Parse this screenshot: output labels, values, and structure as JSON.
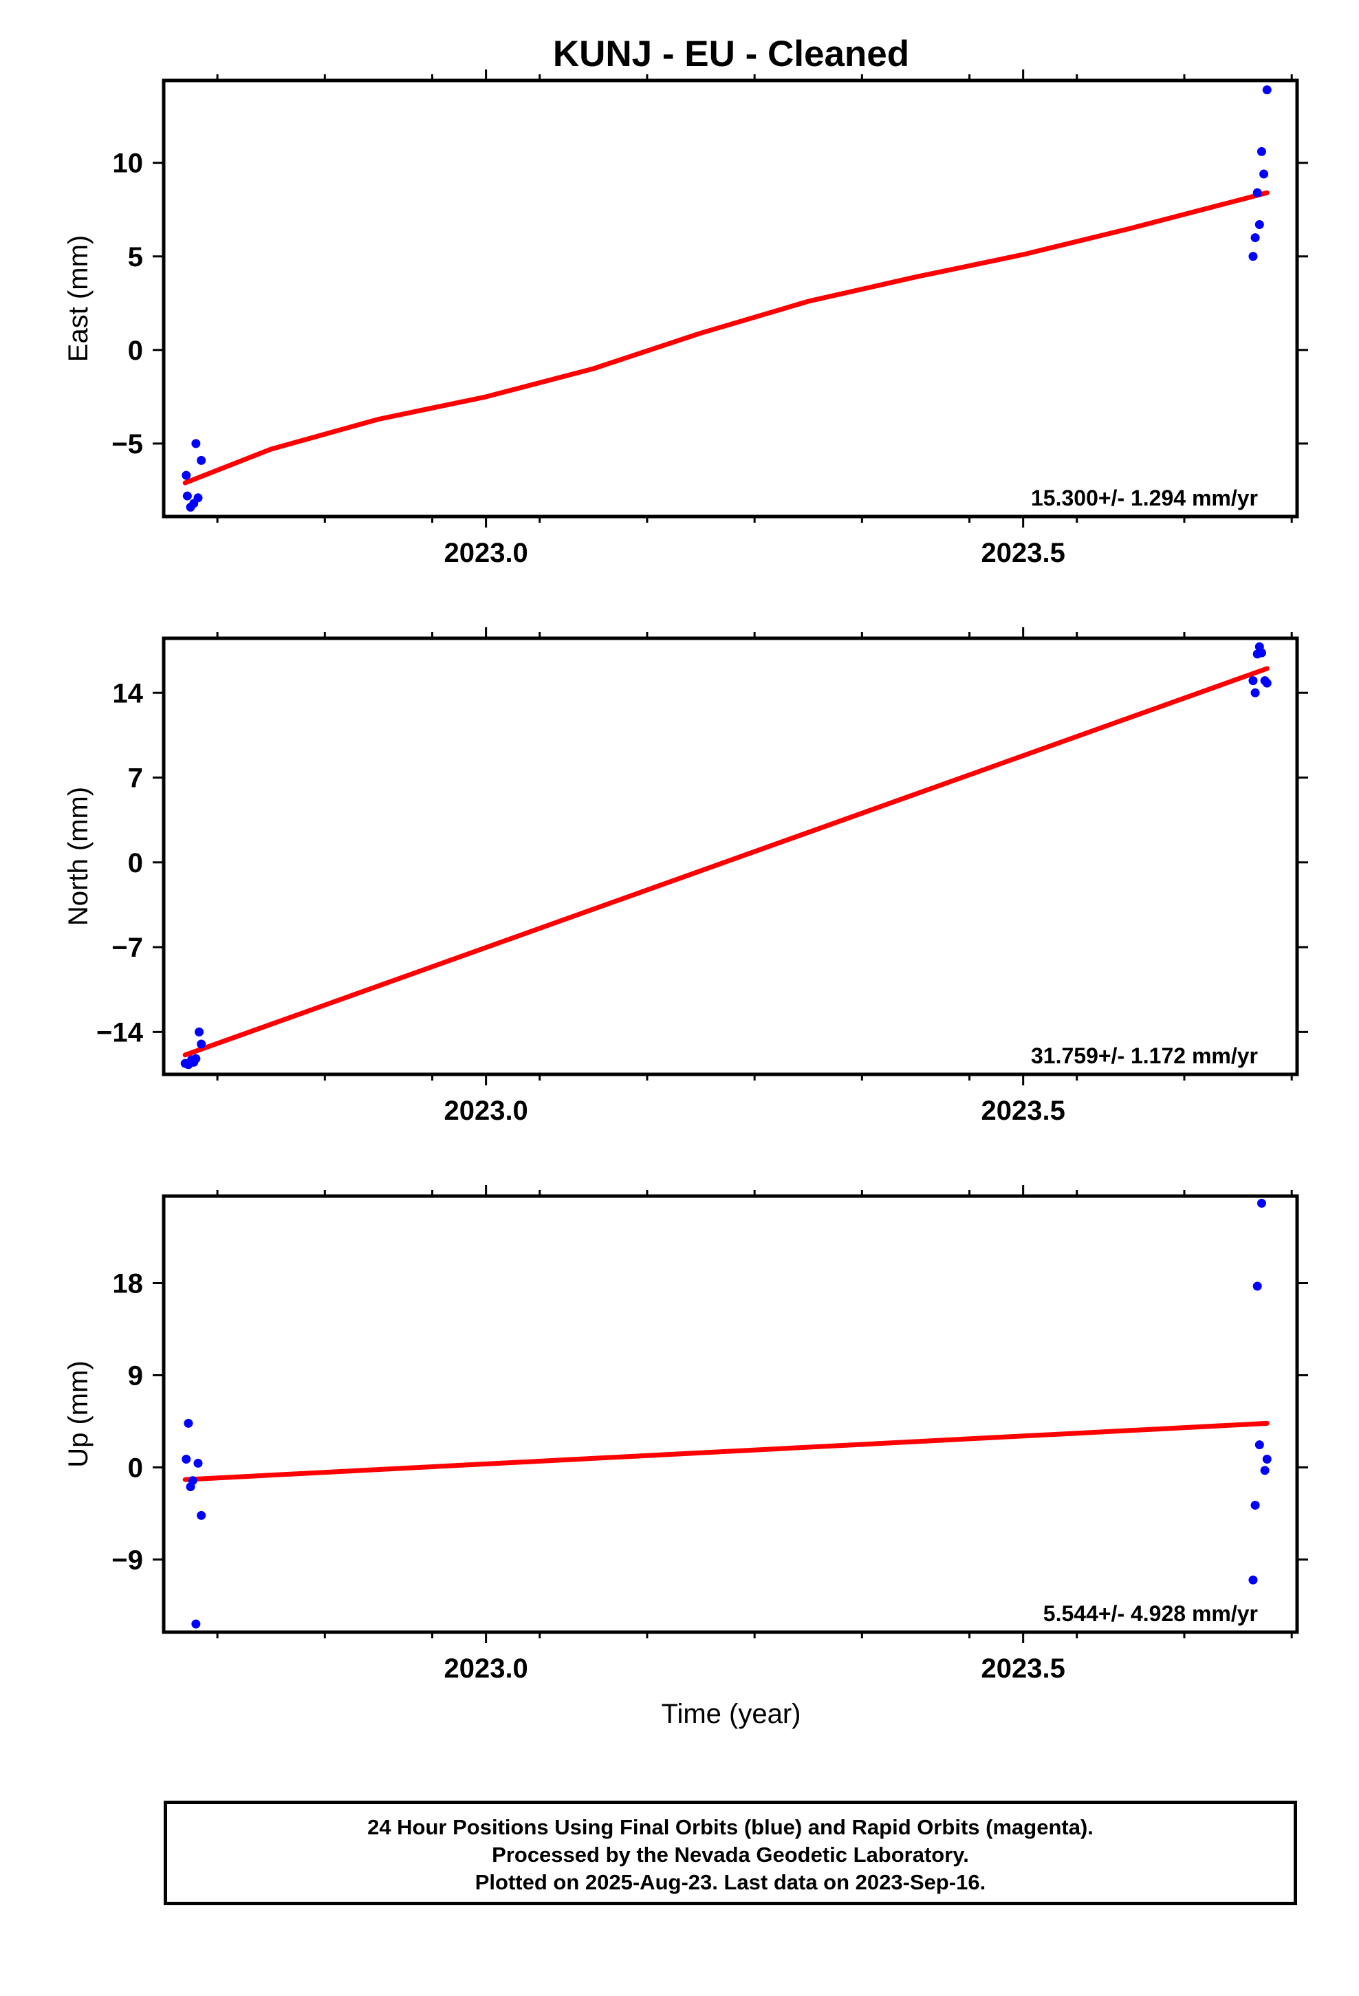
{
  "title": "KUNJ  - EU - Cleaned",
  "xlabel": "Time (year)",
  "footer": {
    "line1": "24 Hour Positions Using Final Orbits (blue) and Rapid Orbits (magenta).",
    "line2": "Processed by the Nevada Geodetic Laboratory.",
    "line3": "Plotted on 2025-Aug-23. Last data on 2023-Sep-16."
  },
  "colors": {
    "points": "#0000ff",
    "fit": "#ff0000",
    "axes": "#000000"
  },
  "chart_data": [
    {
      "type": "scatter",
      "ylabel": "East (mm)",
      "xlim": [
        2022.7,
        2023.755
      ],
      "ylim": [
        -8.9,
        14.4
      ],
      "xticks": [
        2023.0,
        2023.5
      ],
      "xtick_labels": [
        "2023.0",
        "2023.5"
      ],
      "yticks": [
        -5,
        0,
        5,
        10
      ],
      "ytick_labels": [
        "−5",
        "0",
        "5",
        "10"
      ],
      "rate_label": "15.300+/- 1.294 mm/yr",
      "points": [
        [
          2022.721,
          -6.7
        ],
        [
          2022.722,
          -7.8
        ],
        [
          2022.725,
          -8.4
        ],
        [
          2022.728,
          -8.2
        ],
        [
          2022.73,
          -5.0
        ],
        [
          2022.732,
          -7.9
        ],
        [
          2022.735,
          -5.9
        ],
        [
          2023.714,
          5.0
        ],
        [
          2023.716,
          6.0
        ],
        [
          2023.718,
          8.4
        ],
        [
          2023.72,
          6.7
        ],
        [
          2023.722,
          10.6
        ],
        [
          2023.724,
          9.4
        ],
        [
          2023.727,
          13.9
        ]
      ],
      "fit": [
        [
          2022.72,
          -7.1
        ],
        [
          2022.8,
          -5.3
        ],
        [
          2022.9,
          -3.7
        ],
        [
          2023.0,
          -2.5
        ],
        [
          2023.1,
          -1.0
        ],
        [
          2023.2,
          0.9
        ],
        [
          2023.3,
          2.6
        ],
        [
          2023.4,
          3.9
        ],
        [
          2023.5,
          5.1
        ],
        [
          2023.6,
          6.5
        ],
        [
          2023.727,
          8.4
        ]
      ]
    },
    {
      "type": "scatter",
      "ylabel": "North (mm)",
      "xlim": [
        2022.7,
        2023.755
      ],
      "ylim": [
        -17.5,
        18.5
      ],
      "xticks": [
        2023.0,
        2023.5
      ],
      "xtick_labels": [
        "2023.0",
        "2023.5"
      ],
      "yticks": [
        -14,
        -7,
        0,
        7,
        14
      ],
      "ytick_labels": [
        "−14",
        "−7",
        "0",
        "7",
        "14"
      ],
      "rate_label": "31.759+/- 1.172 mm/yr",
      "points": [
        [
          2022.72,
          -16.6
        ],
        [
          2022.723,
          -16.7
        ],
        [
          2022.726,
          -16.3
        ],
        [
          2022.728,
          -16.5
        ],
        [
          2022.73,
          -16.2
        ],
        [
          2022.733,
          -14.0
        ],
        [
          2022.735,
          -15.0
        ],
        [
          2023.714,
          15.0
        ],
        [
          2023.716,
          14.0
        ],
        [
          2023.718,
          17.2
        ],
        [
          2023.72,
          17.8
        ],
        [
          2023.722,
          17.3
        ],
        [
          2023.725,
          15.0
        ],
        [
          2023.727,
          14.8
        ]
      ],
      "fit": [
        [
          2022.72,
          -15.9
        ],
        [
          2023.727,
          16.0
        ]
      ]
    },
    {
      "type": "scatter",
      "ylabel": "Up (mm)",
      "xlim": [
        2022.7,
        2023.755
      ],
      "ylim": [
        -16.1,
        26.5
      ],
      "xticks": [
        2023.0,
        2023.5
      ],
      "xtick_labels": [
        "2023.0",
        "2023.5"
      ],
      "yticks": [
        -9,
        0,
        9,
        18
      ],
      "ytick_labels": [
        "−9",
        "0",
        "9",
        "18"
      ],
      "rate_label": "5.544+/- 4.928 mm/yr",
      "points": [
        [
          2022.721,
          0.8
        ],
        [
          2022.723,
          4.3
        ],
        [
          2022.725,
          -1.9
        ],
        [
          2022.727,
          -1.3
        ],
        [
          2022.73,
          -15.3
        ],
        [
          2022.732,
          0.4
        ],
        [
          2022.735,
          -4.7
        ],
        [
          2023.714,
          -11.0
        ],
        [
          2023.716,
          -3.7
        ],
        [
          2023.718,
          17.7
        ],
        [
          2023.72,
          2.2
        ],
        [
          2023.722,
          25.8
        ],
        [
          2023.725,
          -0.3
        ],
        [
          2023.727,
          0.8
        ]
      ],
      "fit": [
        [
          2022.72,
          -1.2
        ],
        [
          2023.727,
          4.3
        ]
      ]
    }
  ]
}
